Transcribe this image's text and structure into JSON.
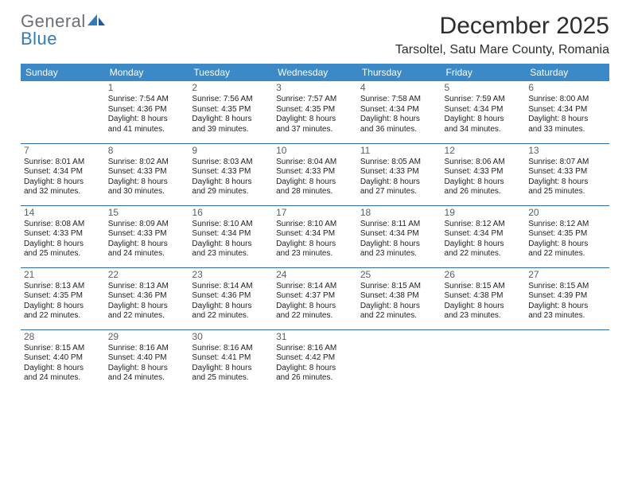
{
  "brand": {
    "general": "General",
    "blue": "Blue"
  },
  "title": "December 2025",
  "subtitle": "Tarsoltel, Satu Mare County, Romania",
  "colors": {
    "header_bg": "#3b89c7",
    "header_fg": "#ffffff",
    "rule": "#2f6aa3",
    "daynum": "#5a5f66",
    "logo_gray": "#6a6f75",
    "logo_blue": "#2f7bc0",
    "text": "#222222"
  },
  "weekdays": [
    "Sunday",
    "Monday",
    "Tuesday",
    "Wednesday",
    "Thursday",
    "Friday",
    "Saturday"
  ],
  "weeks": [
    [
      null,
      {
        "day": "1",
        "lines": [
          "Sunrise: 7:54 AM",
          "Sunset: 4:36 PM",
          "Daylight: 8 hours",
          "and 41 minutes."
        ]
      },
      {
        "day": "2",
        "lines": [
          "Sunrise: 7:56 AM",
          "Sunset: 4:35 PM",
          "Daylight: 8 hours",
          "and 39 minutes."
        ]
      },
      {
        "day": "3",
        "lines": [
          "Sunrise: 7:57 AM",
          "Sunset: 4:35 PM",
          "Daylight: 8 hours",
          "and 37 minutes."
        ]
      },
      {
        "day": "4",
        "lines": [
          "Sunrise: 7:58 AM",
          "Sunset: 4:34 PM",
          "Daylight: 8 hours",
          "and 36 minutes."
        ]
      },
      {
        "day": "5",
        "lines": [
          "Sunrise: 7:59 AM",
          "Sunset: 4:34 PM",
          "Daylight: 8 hours",
          "and 34 minutes."
        ]
      },
      {
        "day": "6",
        "lines": [
          "Sunrise: 8:00 AM",
          "Sunset: 4:34 PM",
          "Daylight: 8 hours",
          "and 33 minutes."
        ]
      }
    ],
    [
      {
        "day": "7",
        "lines": [
          "Sunrise: 8:01 AM",
          "Sunset: 4:34 PM",
          "Daylight: 8 hours",
          "and 32 minutes."
        ]
      },
      {
        "day": "8",
        "lines": [
          "Sunrise: 8:02 AM",
          "Sunset: 4:33 PM",
          "Daylight: 8 hours",
          "and 30 minutes."
        ]
      },
      {
        "day": "9",
        "lines": [
          "Sunrise: 8:03 AM",
          "Sunset: 4:33 PM",
          "Daylight: 8 hours",
          "and 29 minutes."
        ]
      },
      {
        "day": "10",
        "lines": [
          "Sunrise: 8:04 AM",
          "Sunset: 4:33 PM",
          "Daylight: 8 hours",
          "and 28 minutes."
        ]
      },
      {
        "day": "11",
        "lines": [
          "Sunrise: 8:05 AM",
          "Sunset: 4:33 PM",
          "Daylight: 8 hours",
          "and 27 minutes."
        ]
      },
      {
        "day": "12",
        "lines": [
          "Sunrise: 8:06 AM",
          "Sunset: 4:33 PM",
          "Daylight: 8 hours",
          "and 26 minutes."
        ]
      },
      {
        "day": "13",
        "lines": [
          "Sunrise: 8:07 AM",
          "Sunset: 4:33 PM",
          "Daylight: 8 hours",
          "and 25 minutes."
        ]
      }
    ],
    [
      {
        "day": "14",
        "lines": [
          "Sunrise: 8:08 AM",
          "Sunset: 4:33 PM",
          "Daylight: 8 hours",
          "and 25 minutes."
        ]
      },
      {
        "day": "15",
        "lines": [
          "Sunrise: 8:09 AM",
          "Sunset: 4:33 PM",
          "Daylight: 8 hours",
          "and 24 minutes."
        ]
      },
      {
        "day": "16",
        "lines": [
          "Sunrise: 8:10 AM",
          "Sunset: 4:34 PM",
          "Daylight: 8 hours",
          "and 23 minutes."
        ]
      },
      {
        "day": "17",
        "lines": [
          "Sunrise: 8:10 AM",
          "Sunset: 4:34 PM",
          "Daylight: 8 hours",
          "and 23 minutes."
        ]
      },
      {
        "day": "18",
        "lines": [
          "Sunrise: 8:11 AM",
          "Sunset: 4:34 PM",
          "Daylight: 8 hours",
          "and 23 minutes."
        ]
      },
      {
        "day": "19",
        "lines": [
          "Sunrise: 8:12 AM",
          "Sunset: 4:34 PM",
          "Daylight: 8 hours",
          "and 22 minutes."
        ]
      },
      {
        "day": "20",
        "lines": [
          "Sunrise: 8:12 AM",
          "Sunset: 4:35 PM",
          "Daylight: 8 hours",
          "and 22 minutes."
        ]
      }
    ],
    [
      {
        "day": "21",
        "lines": [
          "Sunrise: 8:13 AM",
          "Sunset: 4:35 PM",
          "Daylight: 8 hours",
          "and 22 minutes."
        ]
      },
      {
        "day": "22",
        "lines": [
          "Sunrise: 8:13 AM",
          "Sunset: 4:36 PM",
          "Daylight: 8 hours",
          "and 22 minutes."
        ]
      },
      {
        "day": "23",
        "lines": [
          "Sunrise: 8:14 AM",
          "Sunset: 4:36 PM",
          "Daylight: 8 hours",
          "and 22 minutes."
        ]
      },
      {
        "day": "24",
        "lines": [
          "Sunrise: 8:14 AM",
          "Sunset: 4:37 PM",
          "Daylight: 8 hours",
          "and 22 minutes."
        ]
      },
      {
        "day": "25",
        "lines": [
          "Sunrise: 8:15 AM",
          "Sunset: 4:38 PM",
          "Daylight: 8 hours",
          "and 22 minutes."
        ]
      },
      {
        "day": "26",
        "lines": [
          "Sunrise: 8:15 AM",
          "Sunset: 4:38 PM",
          "Daylight: 8 hours",
          "and 23 minutes."
        ]
      },
      {
        "day": "27",
        "lines": [
          "Sunrise: 8:15 AM",
          "Sunset: 4:39 PM",
          "Daylight: 8 hours",
          "and 23 minutes."
        ]
      }
    ],
    [
      {
        "day": "28",
        "lines": [
          "Sunrise: 8:15 AM",
          "Sunset: 4:40 PM",
          "Daylight: 8 hours",
          "and 24 minutes."
        ]
      },
      {
        "day": "29",
        "lines": [
          "Sunrise: 8:16 AM",
          "Sunset: 4:40 PM",
          "Daylight: 8 hours",
          "and 24 minutes."
        ]
      },
      {
        "day": "30",
        "lines": [
          "Sunrise: 8:16 AM",
          "Sunset: 4:41 PM",
          "Daylight: 8 hours",
          "and 25 minutes."
        ]
      },
      {
        "day": "31",
        "lines": [
          "Sunrise: 8:16 AM",
          "Sunset: 4:42 PM",
          "Daylight: 8 hours",
          "and 26 minutes."
        ]
      },
      null,
      null,
      null
    ]
  ]
}
